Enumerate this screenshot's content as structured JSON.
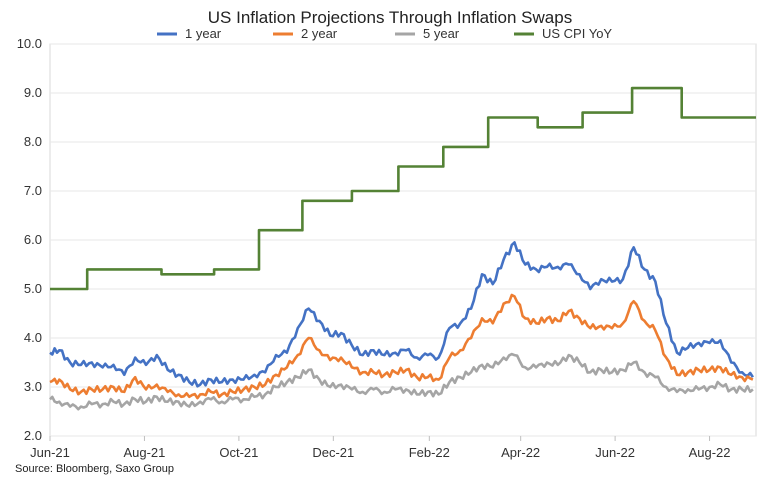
{
  "chart_data": {
    "type": "line",
    "title": "US Inflation Projections Through Inflation Swaps",
    "source": "Source: Bloomberg, Saxo Group",
    "xlabel": "",
    "ylabel": "",
    "ylim": [
      2.0,
      10.0
    ],
    "yticks": [
      "10.0",
      "9.0",
      "8.0",
      "7.0",
      "6.0",
      "5.0",
      "4.0",
      "3.0",
      "2.0"
    ],
    "xticks": [
      "Jun-21",
      "Aug-21",
      "Oct-21",
      "Dec-21",
      "Feb-22",
      "Apr-22",
      "Jun-22",
      "Aug-22"
    ],
    "xlim": [
      "2021-06-01",
      "2022-08-31"
    ],
    "grid": "horizontal",
    "legend_position": "top",
    "series": [
      {
        "name": "1 year",
        "color": "#4472C4",
        "points": [
          [
            "2021-06-01",
            3.7
          ],
          [
            "2021-06-07",
            3.75
          ],
          [
            "2021-06-14",
            3.5
          ],
          [
            "2021-06-21",
            3.45
          ],
          [
            "2021-06-28",
            3.5
          ],
          [
            "2021-07-05",
            3.4
          ],
          [
            "2021-07-12",
            3.45
          ],
          [
            "2021-07-19",
            3.25
          ],
          [
            "2021-07-26",
            3.6
          ],
          [
            "2021-08-02",
            3.45
          ],
          [
            "2021-08-09",
            3.65
          ],
          [
            "2021-08-16",
            3.35
          ],
          [
            "2021-08-23",
            3.25
          ],
          [
            "2021-08-30",
            3.1
          ],
          [
            "2021-09-06",
            3.05
          ],
          [
            "2021-09-13",
            3.15
          ],
          [
            "2021-09-20",
            3.1
          ],
          [
            "2021-09-27",
            3.15
          ],
          [
            "2021-10-04",
            3.15
          ],
          [
            "2021-10-11",
            3.25
          ],
          [
            "2021-10-18",
            3.3
          ],
          [
            "2021-10-25",
            3.65
          ],
          [
            "2021-11-01",
            3.7
          ],
          [
            "2021-11-08",
            4.2
          ],
          [
            "2021-11-15",
            4.6
          ],
          [
            "2021-11-22",
            4.35
          ],
          [
            "2021-11-29",
            4.05
          ],
          [
            "2021-12-06",
            4.1
          ],
          [
            "2021-12-13",
            3.85
          ],
          [
            "2021-12-20",
            3.65
          ],
          [
            "2021-12-27",
            3.75
          ],
          [
            "2022-01-03",
            3.65
          ],
          [
            "2022-01-10",
            3.7
          ],
          [
            "2022-01-17",
            3.75
          ],
          [
            "2022-01-24",
            3.6
          ],
          [
            "2022-01-31",
            3.65
          ],
          [
            "2022-02-07",
            3.6
          ],
          [
            "2022-02-14",
            4.2
          ],
          [
            "2022-02-21",
            4.3
          ],
          [
            "2022-02-28",
            4.6
          ],
          [
            "2022-03-07",
            5.3
          ],
          [
            "2022-03-14",
            5.1
          ],
          [
            "2022-03-21",
            5.6
          ],
          [
            "2022-03-28",
            5.95
          ],
          [
            "2022-04-04",
            5.5
          ],
          [
            "2022-04-11",
            5.4
          ],
          [
            "2022-04-18",
            5.45
          ],
          [
            "2022-04-25",
            5.45
          ],
          [
            "2022-05-02",
            5.5
          ],
          [
            "2022-05-09",
            5.3
          ],
          [
            "2022-05-16",
            5.0
          ],
          [
            "2022-05-23",
            5.2
          ],
          [
            "2022-05-30",
            5.15
          ],
          [
            "2022-06-06",
            5.2
          ],
          [
            "2022-06-13",
            5.85
          ],
          [
            "2022-06-20",
            5.4
          ],
          [
            "2022-06-27",
            5.15
          ],
          [
            "2022-07-04",
            4.3
          ],
          [
            "2022-07-11",
            3.7
          ],
          [
            "2022-07-18",
            3.8
          ],
          [
            "2022-07-25",
            3.9
          ],
          [
            "2022-08-01",
            3.9
          ],
          [
            "2022-08-08",
            3.95
          ],
          [
            "2022-08-15",
            3.5
          ],
          [
            "2022-08-22",
            3.3
          ],
          [
            "2022-08-29",
            3.2
          ]
        ]
      },
      {
        "name": "2 year",
        "color": "#ED7D31",
        "points": [
          [
            "2021-06-01",
            3.1
          ],
          [
            "2021-06-07",
            3.15
          ],
          [
            "2021-06-14",
            2.95
          ],
          [
            "2021-06-21",
            2.9
          ],
          [
            "2021-06-28",
            2.95
          ],
          [
            "2021-07-05",
            2.95
          ],
          [
            "2021-07-12",
            3.0
          ],
          [
            "2021-07-19",
            2.9
          ],
          [
            "2021-07-26",
            3.2
          ],
          [
            "2021-08-02",
            2.95
          ],
          [
            "2021-08-09",
            3.05
          ],
          [
            "2021-08-16",
            2.9
          ],
          [
            "2021-08-23",
            2.85
          ],
          [
            "2021-08-30",
            2.8
          ],
          [
            "2021-09-06",
            2.85
          ],
          [
            "2021-09-13",
            2.9
          ],
          [
            "2021-09-20",
            2.85
          ],
          [
            "2021-09-27",
            2.9
          ],
          [
            "2021-10-04",
            2.95
          ],
          [
            "2021-10-11",
            3.0
          ],
          [
            "2021-10-18",
            3.05
          ],
          [
            "2021-10-25",
            3.25
          ],
          [
            "2021-11-01",
            3.4
          ],
          [
            "2021-11-08",
            3.65
          ],
          [
            "2021-11-15",
            4.0
          ],
          [
            "2021-11-22",
            3.75
          ],
          [
            "2021-11-29",
            3.55
          ],
          [
            "2021-12-06",
            3.6
          ],
          [
            "2021-12-13",
            3.4
          ],
          [
            "2021-12-20",
            3.3
          ],
          [
            "2021-12-27",
            3.3
          ],
          [
            "2022-01-03",
            3.25
          ],
          [
            "2022-01-10",
            3.3
          ],
          [
            "2022-01-17",
            3.35
          ],
          [
            "2022-01-24",
            3.2
          ],
          [
            "2022-01-31",
            3.2
          ],
          [
            "2022-02-07",
            3.15
          ],
          [
            "2022-02-14",
            3.6
          ],
          [
            "2022-02-21",
            3.75
          ],
          [
            "2022-02-28",
            4.0
          ],
          [
            "2022-03-07",
            4.4
          ],
          [
            "2022-03-14",
            4.3
          ],
          [
            "2022-03-21",
            4.7
          ],
          [
            "2022-03-28",
            4.85
          ],
          [
            "2022-04-04",
            4.4
          ],
          [
            "2022-04-11",
            4.3
          ],
          [
            "2022-04-18",
            4.4
          ],
          [
            "2022-04-25",
            4.35
          ],
          [
            "2022-05-02",
            4.55
          ],
          [
            "2022-05-09",
            4.4
          ],
          [
            "2022-05-16",
            4.2
          ],
          [
            "2022-05-23",
            4.25
          ],
          [
            "2022-05-30",
            4.2
          ],
          [
            "2022-06-06",
            4.3
          ],
          [
            "2022-06-13",
            4.75
          ],
          [
            "2022-06-20",
            4.35
          ],
          [
            "2022-06-27",
            4.15
          ],
          [
            "2022-07-04",
            3.6
          ],
          [
            "2022-07-11",
            3.25
          ],
          [
            "2022-07-18",
            3.3
          ],
          [
            "2022-07-25",
            3.35
          ],
          [
            "2022-08-01",
            3.35
          ],
          [
            "2022-08-08",
            3.4
          ],
          [
            "2022-08-15",
            3.25
          ],
          [
            "2022-08-22",
            3.2
          ],
          [
            "2022-08-29",
            3.15
          ]
        ]
      },
      {
        "name": "5 year",
        "color": "#A5A5A5",
        "points": [
          [
            "2021-06-01",
            2.75
          ],
          [
            "2021-06-07",
            2.7
          ],
          [
            "2021-06-14",
            2.6
          ],
          [
            "2021-06-21",
            2.6
          ],
          [
            "2021-06-28",
            2.65
          ],
          [
            "2021-07-05",
            2.65
          ],
          [
            "2021-07-12",
            2.7
          ],
          [
            "2021-07-19",
            2.65
          ],
          [
            "2021-07-26",
            2.75
          ],
          [
            "2021-08-02",
            2.7
          ],
          [
            "2021-08-09",
            2.8
          ],
          [
            "2021-08-16",
            2.7
          ],
          [
            "2021-08-23",
            2.7
          ],
          [
            "2021-08-30",
            2.6
          ],
          [
            "2021-09-06",
            2.7
          ],
          [
            "2021-09-13",
            2.75
          ],
          [
            "2021-09-20",
            2.7
          ],
          [
            "2021-09-27",
            2.75
          ],
          [
            "2021-10-04",
            2.75
          ],
          [
            "2021-10-11",
            2.8
          ],
          [
            "2021-10-18",
            2.85
          ],
          [
            "2021-10-25",
            3.0
          ],
          [
            "2021-11-01",
            3.1
          ],
          [
            "2021-11-08",
            3.2
          ],
          [
            "2021-11-15",
            3.35
          ],
          [
            "2021-11-22",
            3.15
          ],
          [
            "2021-11-29",
            3.0
          ],
          [
            "2021-12-06",
            3.05
          ],
          [
            "2021-12-13",
            2.95
          ],
          [
            "2021-12-20",
            2.9
          ],
          [
            "2021-12-27",
            2.95
          ],
          [
            "2022-01-03",
            2.9
          ],
          [
            "2022-01-10",
            2.95
          ],
          [
            "2022-01-17",
            2.95
          ],
          [
            "2022-01-24",
            2.85
          ],
          [
            "2022-01-31",
            2.9
          ],
          [
            "2022-02-07",
            2.85
          ],
          [
            "2022-02-14",
            3.1
          ],
          [
            "2022-02-21",
            3.2
          ],
          [
            "2022-02-28",
            3.3
          ],
          [
            "2022-03-07",
            3.45
          ],
          [
            "2022-03-14",
            3.4
          ],
          [
            "2022-03-21",
            3.6
          ],
          [
            "2022-03-28",
            3.65
          ],
          [
            "2022-04-04",
            3.4
          ],
          [
            "2022-04-11",
            3.4
          ],
          [
            "2022-04-18",
            3.5
          ],
          [
            "2022-04-25",
            3.45
          ],
          [
            "2022-05-02",
            3.65
          ],
          [
            "2022-05-09",
            3.5
          ],
          [
            "2022-05-16",
            3.3
          ],
          [
            "2022-05-23",
            3.35
          ],
          [
            "2022-05-30",
            3.3
          ],
          [
            "2022-06-06",
            3.35
          ],
          [
            "2022-06-13",
            3.5
          ],
          [
            "2022-06-20",
            3.3
          ],
          [
            "2022-06-27",
            3.2
          ],
          [
            "2022-07-04",
            3.0
          ],
          [
            "2022-07-11",
            2.9
          ],
          [
            "2022-07-18",
            2.95
          ],
          [
            "2022-07-25",
            2.95
          ],
          [
            "2022-08-01",
            3.0
          ],
          [
            "2022-08-08",
            3.05
          ],
          [
            "2022-08-15",
            2.95
          ],
          [
            "2022-08-22",
            2.95
          ],
          [
            "2022-08-29",
            2.95
          ]
        ]
      },
      {
        "name": "US CPI YoY",
        "color": "#548235",
        "step": true,
        "points": [
          [
            "2021-06-01",
            5.0
          ],
          [
            "2021-06-25",
            5.4
          ],
          [
            "2021-08-12",
            5.3
          ],
          [
            "2021-09-15",
            5.4
          ],
          [
            "2021-10-14",
            6.2
          ],
          [
            "2021-11-11",
            6.8
          ],
          [
            "2021-12-13",
            7.0
          ],
          [
            "2022-01-12",
            7.5
          ],
          [
            "2022-02-10",
            7.9
          ],
          [
            "2022-03-11",
            8.5
          ],
          [
            "2022-04-12",
            8.3
          ],
          [
            "2022-05-11",
            8.6
          ],
          [
            "2022-06-12",
            9.1
          ],
          [
            "2022-07-14",
            8.5
          ]
        ],
        "end_date": "2022-08-31"
      }
    ]
  }
}
